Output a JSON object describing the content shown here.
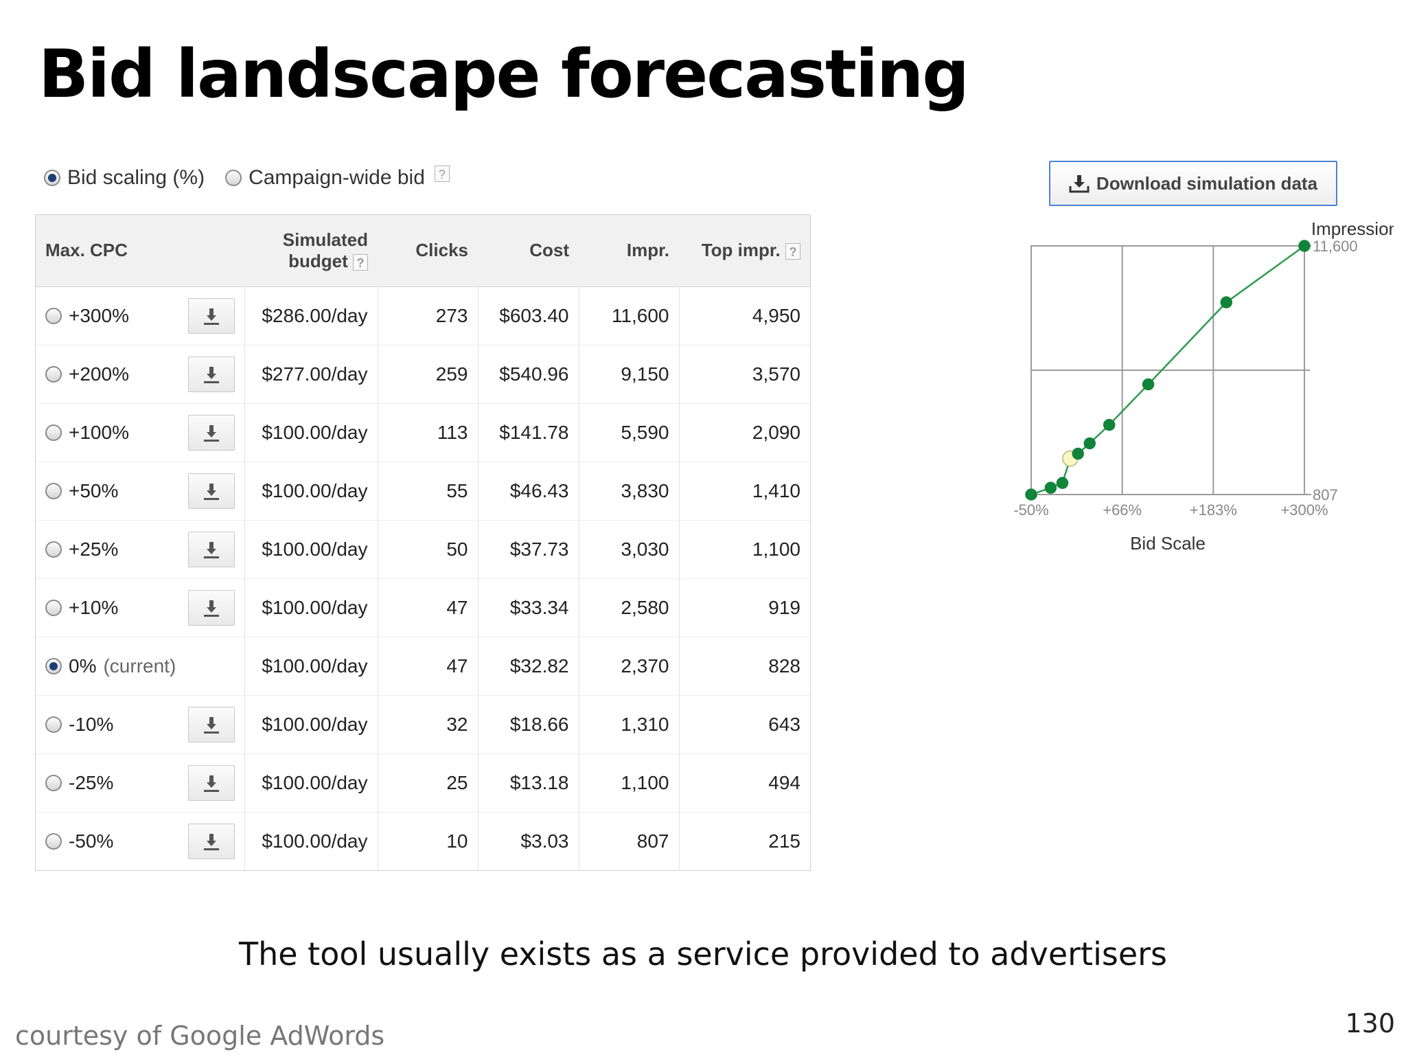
{
  "slide": {
    "title": "Bid landscape forecasting",
    "caption": "The tool usually exists as a service provided to advertisers",
    "credit": "courtesy of Google AdWords",
    "page_number": "130"
  },
  "mode": {
    "options": [
      {
        "label": "Bid scaling (%)",
        "selected": true
      },
      {
        "label": "Campaign-wide bid",
        "selected": false
      }
    ],
    "help": "?"
  },
  "table": {
    "headers": {
      "max_cpc": "Max. CPC",
      "budget_line1": "Simulated",
      "budget_line2": "budget",
      "clicks": "Clicks",
      "cost": "Cost",
      "impr": "Impr.",
      "top_impr": "Top impr.",
      "help": "?"
    },
    "rows": [
      {
        "cpc": "+300%",
        "budget": "$286.00/day",
        "clicks": "273",
        "cost": "$603.40",
        "impr": "11,600",
        "top": "4,950",
        "current": false
      },
      {
        "cpc": "+200%",
        "budget": "$277.00/day",
        "clicks": "259",
        "cost": "$540.96",
        "impr": "9,150",
        "top": "3,570",
        "current": false
      },
      {
        "cpc": "+100%",
        "budget": "$100.00/day",
        "clicks": "113",
        "cost": "$141.78",
        "impr": "5,590",
        "top": "2,090",
        "current": false
      },
      {
        "cpc": "+50%",
        "budget": "$100.00/day",
        "clicks": "55",
        "cost": "$46.43",
        "impr": "3,830",
        "top": "1,410",
        "current": false
      },
      {
        "cpc": "+25%",
        "budget": "$100.00/day",
        "clicks": "50",
        "cost": "$37.73",
        "impr": "3,030",
        "top": "1,100",
        "current": false
      },
      {
        "cpc": "+10%",
        "budget": "$100.00/day",
        "clicks": "47",
        "cost": "$33.34",
        "impr": "2,580",
        "top": "919",
        "current": false
      },
      {
        "cpc": "0%",
        "cpc_suffix": "(current)",
        "budget": "$100.00/day",
        "clicks": "47",
        "cost": "$32.82",
        "impr": "2,370",
        "top": "828",
        "current": true
      },
      {
        "cpc": "-10%",
        "budget": "$100.00/day",
        "clicks": "32",
        "cost": "$18.66",
        "impr": "1,310",
        "top": "643",
        "current": false
      },
      {
        "cpc": "-25%",
        "budget": "$100.00/day",
        "clicks": "25",
        "cost": "$13.18",
        "impr": "1,100",
        "top": "494",
        "current": false
      },
      {
        "cpc": "-50%",
        "budget": "$100.00/day",
        "clicks": "10",
        "cost": "$3.03",
        "impr": "807",
        "top": "215",
        "current": false
      }
    ]
  },
  "download_button": {
    "label": "Download simulation data",
    "icon": "download-icon"
  },
  "chart_data": {
    "type": "line",
    "ylabel": "Impressions",
    "xlabel": "Bid Scale",
    "y_tick_labels": {
      "max": "11,600",
      "min": "807"
    },
    "x_tick_labels": [
      "-50%",
      "+66%",
      "+183%",
      "+300%"
    ],
    "x_range": [
      -50,
      300
    ],
    "y_range": [
      807,
      11600
    ],
    "grid": true,
    "points": [
      {
        "x": -50,
        "y": 807
      },
      {
        "x": -25,
        "y": 1100
      },
      {
        "x": -10,
        "y": 1310
      },
      {
        "x": 0,
        "y": 2370,
        "current": true
      },
      {
        "x": 10,
        "y": 2580
      },
      {
        "x": 25,
        "y": 3030
      },
      {
        "x": 50,
        "y": 3830
      },
      {
        "x": 100,
        "y": 5590
      },
      {
        "x": 200,
        "y": 9150
      },
      {
        "x": 300,
        "y": 11600
      }
    ],
    "colors": {
      "line": "#2e9a4e",
      "point": "#12843a",
      "current_point": "#fbf7c4",
      "grid": "#9b9b9b"
    }
  }
}
